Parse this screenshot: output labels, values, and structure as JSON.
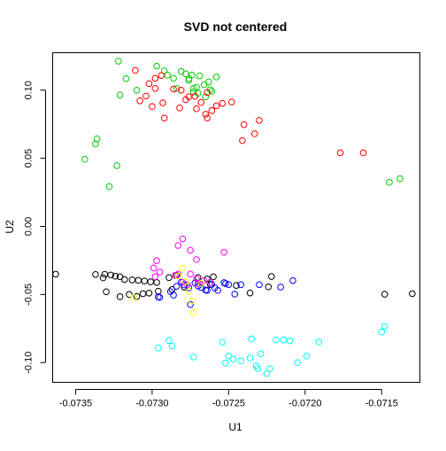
{
  "chart_data": {
    "type": "scatter",
    "title": "SVD not centered",
    "xlabel": "U1",
    "ylabel": "U2",
    "xlim": [
      -0.07365,
      -0.07125
    ],
    "ylim": [
      -0.1145,
      0.1275
    ],
    "x_ticks": [
      -0.0735,
      -0.073,
      -0.0725,
      -0.072,
      -0.0715
    ],
    "x_tick_labels": [
      "-0.0735",
      "-0.0730",
      "-0.0725",
      "-0.0720",
      "-0.0715"
    ],
    "y_ticks": [
      -0.1,
      -0.05,
      0.0,
      0.05,
      0.1
    ],
    "y_tick_labels": [
      "-0.10",
      "-0.05",
      "0.00",
      "0.05",
      "0.10"
    ],
    "grid": false,
    "legend": false,
    "marker": "open-circle",
    "series": [
      {
        "color": "#00cd00",
        "points": [
          [
            -0.07322,
            0.1213
          ],
          [
            -0.07297,
            0.1177
          ],
          [
            -0.07292,
            0.1142
          ],
          [
            -0.07286,
            0.1087
          ],
          [
            -0.07281,
            0.1137
          ],
          [
            -0.07276,
            0.1085
          ],
          [
            -0.07273,
            0.1013
          ],
          [
            -0.07269,
            0.1105
          ],
          [
            -0.07266,
            0.104
          ],
          [
            -0.07263,
            0.1061
          ],
          [
            -0.07261,
            0.0992
          ],
          [
            -0.07278,
            0.112
          ],
          [
            -0.07274,
            0.1111
          ],
          [
            -0.0727,
            0.0978
          ],
          [
            -0.07265,
            0.0951
          ],
          [
            -0.07258,
            0.1097
          ],
          [
            -0.07284,
            0.1012
          ],
          [
            -0.07317,
            0.1085
          ],
          [
            -0.0731,
            0.1
          ],
          [
            -0.0729,
            0.111
          ],
          [
            -0.07276,
            0.1073
          ],
          [
            -0.07271,
            0.1022
          ],
          [
            -0.07321,
            0.0965
          ],
          [
            -0.07273,
            0.0987
          ],
          [
            -0.07262,
            0.1004
          ],
          [
            -0.07336,
            0.0643
          ],
          [
            -0.07337,
            0.0605
          ],
          [
            -0.07344,
            0.0493
          ],
          [
            -0.07323,
            0.0446
          ],
          [
            -0.07328,
            0.0292
          ],
          [
            -0.07145,
            0.0323
          ],
          [
            -0.07138,
            0.035
          ]
        ]
      },
      {
        "color": "#ff0000",
        "points": [
          [
            -0.07311,
            0.1145
          ],
          [
            -0.07302,
            0.1048
          ],
          [
            -0.07298,
            0.1013
          ],
          [
            -0.07294,
            0.1108
          ],
          [
            -0.07286,
            0.1008
          ],
          [
            -0.07281,
            0.1
          ],
          [
            -0.07276,
            0.0952
          ],
          [
            -0.07272,
            0.0955
          ],
          [
            -0.07268,
            0.091
          ],
          [
            -0.07264,
            0.0983
          ],
          [
            -0.07308,
            0.0922
          ],
          [
            -0.07304,
            0.0957
          ],
          [
            -0.07293,
            0.0907
          ],
          [
            -0.07282,
            0.087
          ],
          [
            -0.07271,
            0.0864
          ],
          [
            -0.07265,
            0.0823
          ],
          [
            -0.07258,
            0.0885
          ],
          [
            -0.07254,
            0.0903
          ],
          [
            -0.07248,
            0.0913
          ],
          [
            -0.0724,
            0.0747
          ],
          [
            -0.0723,
            0.0778
          ],
          [
            -0.07233,
            0.068
          ],
          [
            -0.07241,
            0.063
          ],
          [
            -0.07261,
            0.085
          ],
          [
            -0.07292,
            0.0795
          ],
          [
            -0.073,
            0.088
          ],
          [
            -0.07264,
            0.0796
          ],
          [
            -0.07177,
            0.054
          ],
          [
            -0.07162,
            0.054
          ],
          [
            -0.07298,
            0.1087
          ],
          [
            -0.07278,
            0.0931
          ]
        ]
      },
      {
        "color": "#000000",
        "points": [
          [
            -0.07363,
            -0.0351
          ],
          [
            -0.07337,
            -0.0353
          ],
          [
            -0.07332,
            -0.0378
          ],
          [
            -0.07327,
            -0.0357
          ],
          [
            -0.07321,
            -0.037
          ],
          [
            -0.07318,
            -0.039
          ],
          [
            -0.07313,
            -0.0393
          ],
          [
            -0.07309,
            -0.0396
          ],
          [
            -0.07305,
            -0.0401
          ],
          [
            -0.07301,
            -0.0407
          ],
          [
            -0.07297,
            -0.0412
          ],
          [
            -0.07289,
            -0.0376
          ],
          [
            -0.07284,
            -0.0358
          ],
          [
            -0.0727,
            -0.0375
          ],
          [
            -0.07264,
            -0.0386
          ],
          [
            -0.0726,
            -0.037
          ],
          [
            -0.07331,
            -0.0352
          ],
          [
            -0.07324,
            -0.0366
          ],
          [
            -0.07302,
            -0.049
          ],
          [
            -0.07296,
            -0.0476
          ],
          [
            -0.07287,
            -0.0464
          ],
          [
            -0.07279,
            -0.0446
          ],
          [
            -0.07262,
            -0.0427
          ],
          [
            -0.0733,
            -0.048
          ],
          [
            -0.07315,
            -0.05
          ],
          [
            -0.0731,
            -0.0515
          ],
          [
            -0.07306,
            -0.0494
          ],
          [
            -0.07222,
            -0.0368
          ],
          [
            -0.07224,
            -0.0444
          ],
          [
            -0.07236,
            -0.0489
          ],
          [
            -0.07148,
            -0.0498
          ],
          [
            -0.0713,
            -0.0494
          ],
          [
            -0.07245,
            -0.0434
          ],
          [
            -0.07321,
            -0.0516
          ]
        ]
      },
      {
        "color": "#0000ff",
        "points": [
          [
            -0.07295,
            -0.0522
          ],
          [
            -0.07288,
            -0.0479
          ],
          [
            -0.07284,
            -0.044
          ],
          [
            -0.07281,
            -0.041
          ],
          [
            -0.07276,
            -0.0452
          ],
          [
            -0.07272,
            -0.0415
          ],
          [
            -0.07268,
            -0.0424
          ],
          [
            -0.07265,
            -0.0468
          ],
          [
            -0.07261,
            -0.0425
          ],
          [
            -0.07257,
            -0.047
          ],
          [
            -0.07253,
            -0.0413
          ],
          [
            -0.0725,
            -0.0427
          ],
          [
            -0.07246,
            -0.0497
          ],
          [
            -0.0723,
            -0.0428
          ],
          [
            -0.07216,
            -0.0445
          ],
          [
            -0.07208,
            -0.0398
          ],
          [
            -0.07275,
            -0.0574
          ],
          [
            -0.07264,
            -0.047
          ],
          [
            -0.07259,
            -0.0452
          ],
          [
            -0.07252,
            -0.042
          ],
          [
            -0.07296,
            -0.0517
          ],
          [
            -0.07286,
            -0.0505
          ],
          [
            -0.07279,
            -0.043
          ],
          [
            -0.0727,
            -0.0437
          ],
          [
            -0.07268,
            -0.0449
          ],
          [
            -0.07242,
            -0.0428
          ]
        ]
      },
      {
        "color": "#ff00ff",
        "points": [
          [
            -0.0728,
            -0.0092
          ],
          [
            -0.07283,
            -0.014
          ],
          [
            -0.07275,
            -0.0175
          ],
          [
            -0.07271,
            -0.0244
          ],
          [
            -0.07297,
            -0.0251
          ],
          [
            -0.07299,
            -0.0305
          ],
          [
            -0.07283,
            -0.035
          ],
          [
            -0.07298,
            -0.0369
          ],
          [
            -0.07253,
            -0.0191
          ],
          [
            -0.07275,
            -0.035
          ],
          [
            -0.07271,
            -0.0385
          ],
          [
            -0.07295,
            -0.0335
          ],
          [
            -0.07262,
            -0.041
          ],
          [
            -0.07277,
            -0.0428
          ],
          [
            -0.07266,
            -0.0397
          ],
          [
            -0.07285,
            -0.036
          ],
          [
            -0.0728,
            -0.041
          ],
          [
            -0.0727,
            -0.0418
          ]
        ]
      },
      {
        "color": "#ffff00",
        "points": [
          [
            -0.0728,
            -0.0308
          ],
          [
            -0.07276,
            -0.0478
          ],
          [
            -0.07274,
            -0.0546
          ],
          [
            -0.07273,
            -0.0633
          ],
          [
            -0.07312,
            -0.0523
          ],
          [
            -0.07283,
            -0.0364
          ],
          [
            -0.07268,
            -0.042
          ],
          [
            -0.07278,
            -0.0407
          ]
        ]
      },
      {
        "color": "#00ffff",
        "points": [
          [
            -0.07273,
            -0.0959
          ],
          [
            -0.07289,
            -0.0838
          ],
          [
            -0.07287,
            -0.0879
          ],
          [
            -0.07296,
            -0.0893
          ],
          [
            -0.07252,
            -0.1004
          ],
          [
            -0.0725,
            -0.0952
          ],
          [
            -0.07247,
            -0.0975
          ],
          [
            -0.07242,
            -0.0987
          ],
          [
            -0.07236,
            -0.0966
          ],
          [
            -0.07232,
            -0.1025
          ],
          [
            -0.07229,
            -0.0936
          ],
          [
            -0.07223,
            -0.1045
          ],
          [
            -0.07219,
            -0.0833
          ],
          [
            -0.0721,
            -0.084
          ],
          [
            -0.07199,
            -0.0953
          ],
          [
            -0.07191,
            -0.0849
          ],
          [
            -0.07148,
            -0.0734
          ],
          [
            -0.0715,
            -0.0775
          ],
          [
            -0.07254,
            -0.085
          ],
          [
            -0.07235,
            -0.0826
          ],
          [
            -0.07214,
            -0.0833
          ],
          [
            -0.07205,
            -0.1
          ],
          [
            -0.07225,
            -0.108
          ],
          [
            -0.07231,
            -0.1044
          ]
        ]
      }
    ]
  }
}
